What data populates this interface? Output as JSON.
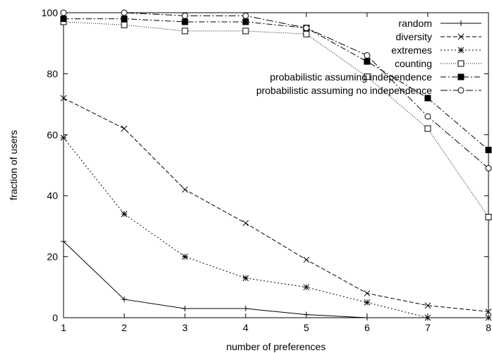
{
  "chart_data": {
    "type": "line",
    "title": "",
    "xlabel": "number of preferences",
    "ylabel": "fraction of users",
    "xlim": [
      1,
      8
    ],
    "ylim": [
      0,
      100
    ],
    "x_ticks": [
      1,
      2,
      3,
      4,
      5,
      6,
      7,
      8
    ],
    "y_ticks": [
      0,
      20,
      40,
      60,
      80,
      100
    ],
    "grid": false,
    "legend_position": "top-right",
    "x": [
      1,
      2,
      3,
      4,
      5,
      6,
      7,
      8
    ],
    "series": [
      {
        "name": "random",
        "values": [
          25,
          6,
          3,
          3,
          1,
          0,
          0,
          0
        ],
        "marker": "plus",
        "dash": "solid"
      },
      {
        "name": "diversity",
        "values": [
          72,
          62,
          42,
          31,
          19,
          8,
          4,
          2
        ],
        "marker": "cross",
        "dash": "dashed"
      },
      {
        "name": "extremes",
        "values": [
          59,
          34,
          20,
          13,
          10,
          5,
          0,
          0
        ],
        "marker": "star",
        "dash": "dotted-short"
      },
      {
        "name": "counting",
        "values": [
          97,
          96,
          94,
          94,
          93,
          79,
          62,
          33
        ],
        "marker": "open-square",
        "dash": "dotted"
      },
      {
        "name": "probabilistic assuming independence",
        "values": [
          98,
          98,
          97,
          97,
          95,
          84,
          72,
          55
        ],
        "marker": "filled-square",
        "dash": "dash-dot"
      },
      {
        "name": "probabilistic assuming no independence",
        "values": [
          100,
          100,
          99,
          99,
          95,
          86,
          66,
          49
        ],
        "marker": "open-circle",
        "dash": "dash-dot-long"
      }
    ],
    "colors": {
      "line": "#000000",
      "background": "#ffffff"
    }
  }
}
